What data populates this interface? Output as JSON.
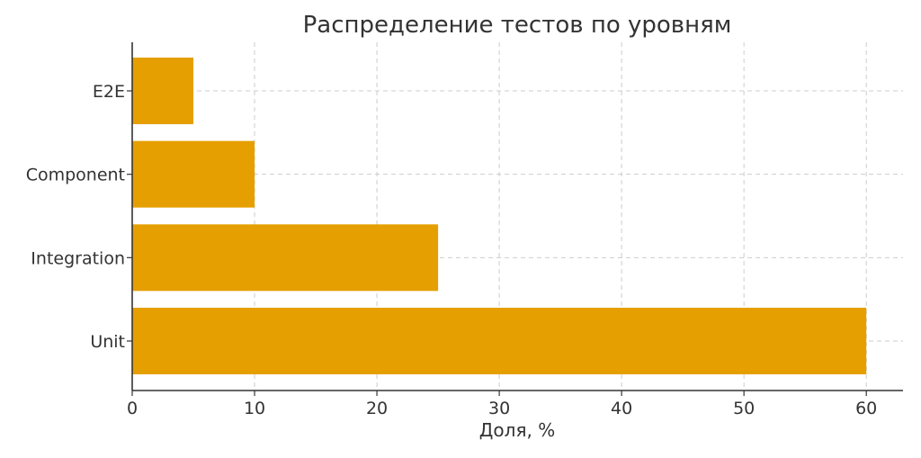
{
  "chart_data": {
    "type": "bar",
    "orientation": "horizontal",
    "title": "Распределение тестов по уровням",
    "xlabel": "Доля, %",
    "ylabel": "",
    "categories": [
      "Unit",
      "Integration",
      "Component",
      "E2E"
    ],
    "values": [
      60,
      25,
      10,
      5
    ],
    "xlim": [
      0,
      63
    ],
    "xticks": [
      0,
      10,
      20,
      30,
      40,
      50,
      60
    ],
    "grid": true,
    "bar_color": "#E69F00"
  }
}
